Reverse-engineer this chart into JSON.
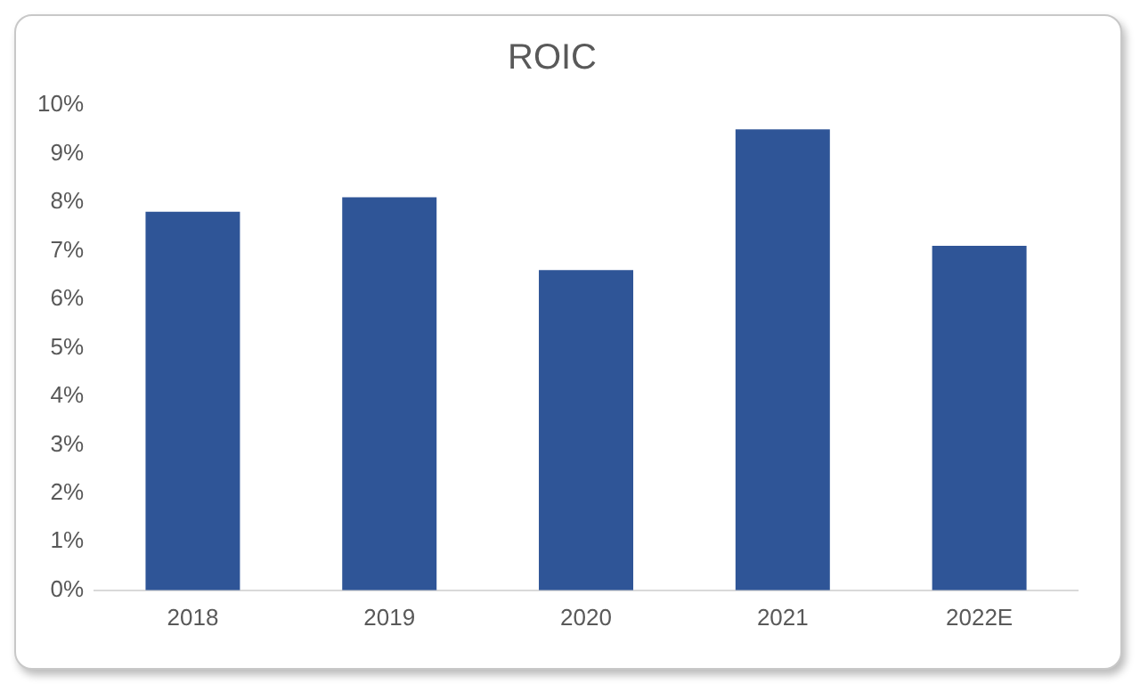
{
  "chart_data": {
    "type": "bar",
    "title": "ROIC",
    "categories": [
      "2018",
      "2019",
      "2020",
      "2021",
      "2022E"
    ],
    "values": [
      7.8,
      8.1,
      6.6,
      9.5,
      7.1
    ],
    "color": "#2f5597",
    "ylim": [
      0,
      10
    ],
    "yticks": [
      {
        "value": 0,
        "label": "0%"
      },
      {
        "value": 1,
        "label": "1%"
      },
      {
        "value": 2,
        "label": "2%"
      },
      {
        "value": 3,
        "label": "3%"
      },
      {
        "value": 4,
        "label": "4%"
      },
      {
        "value": 5,
        "label": "5%"
      },
      {
        "value": 6,
        "label": "6%"
      },
      {
        "value": 7,
        "label": "7%"
      },
      {
        "value": 8,
        "label": "8%"
      },
      {
        "value": 9,
        "label": "9%"
      },
      {
        "value": 10,
        "label": "10%"
      }
    ],
    "grid": false,
    "legend": false
  }
}
